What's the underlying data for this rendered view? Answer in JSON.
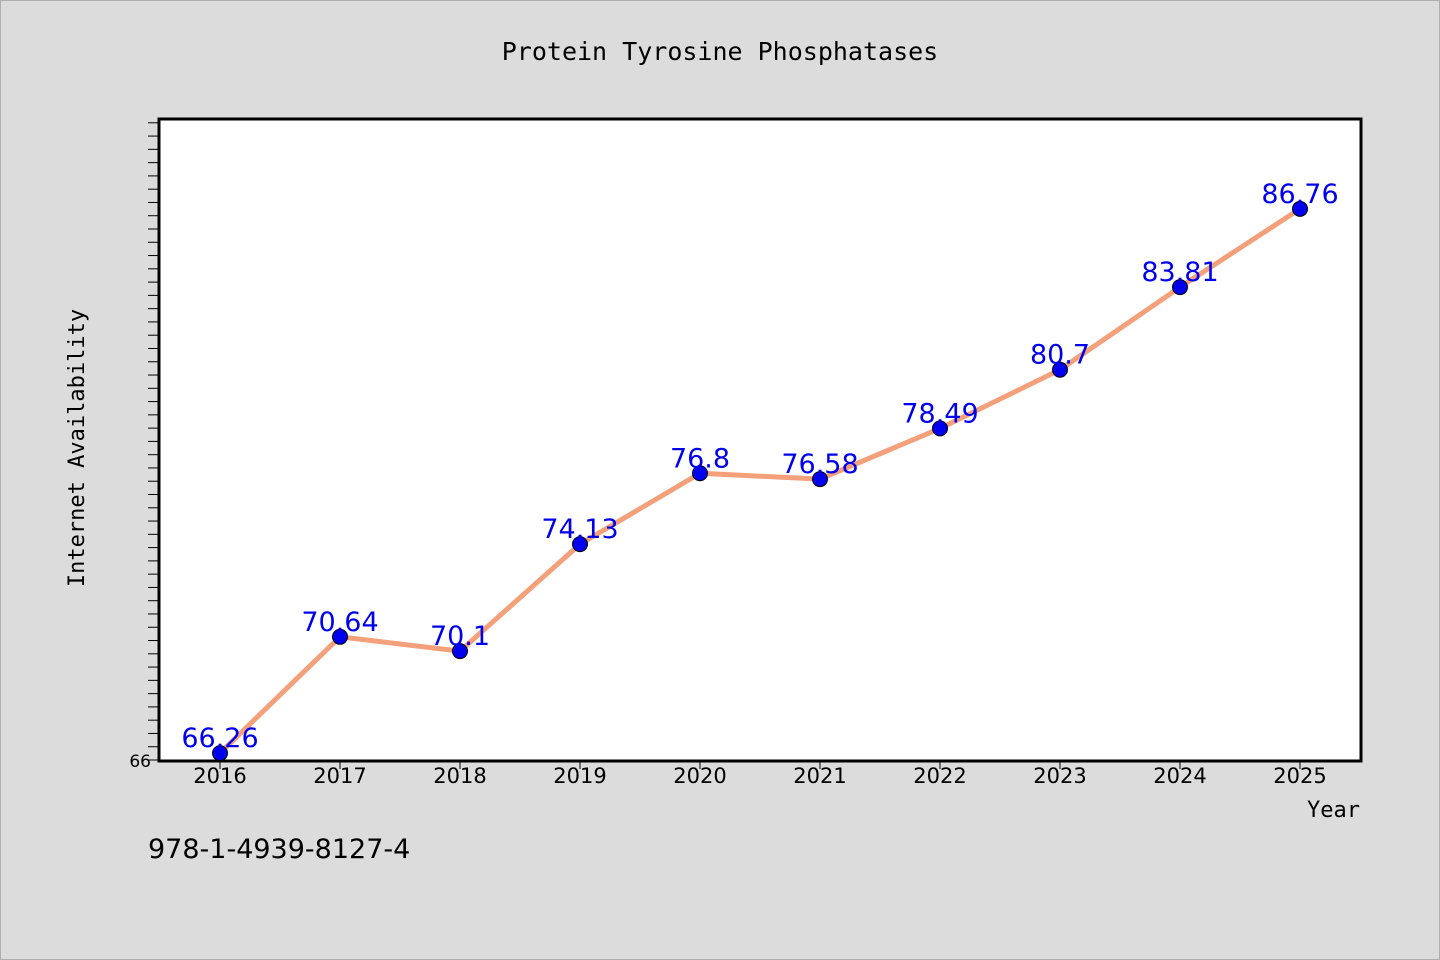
{
  "chart_data": {
    "type": "line",
    "title": "Protein Tyrosine Phosphatases",
    "xlabel": "Year",
    "ylabel": "Internet Availability",
    "x": [
      "2016",
      "2017",
      "2018",
      "2019",
      "2020",
      "2021",
      "2022",
      "2023",
      "2024",
      "2025"
    ],
    "series": [
      {
        "values": [
          66.26,
          70.64,
          70.1,
          74.13,
          76.8,
          76.58,
          78.49,
          80.7,
          83.81,
          86.76
        ],
        "data_labels": [
          "66.26",
          "70.64",
          "70.1",
          "74.13",
          "76.8",
          "76.58",
          "78.49",
          "80.7",
          "83.81",
          "86.76"
        ],
        "line_color": "#f4a07a",
        "marker_color": "#0000ee",
        "label_color": "#0000ee"
      }
    ],
    "y_tick_label": "66",
    "ylim": [
      66,
      90
    ],
    "grid": false,
    "legend": "none"
  },
  "footer": {
    "isbn": "978-1-4939-8127-4"
  }
}
